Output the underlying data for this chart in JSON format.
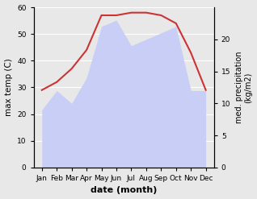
{
  "months": [
    "Jan",
    "Feb",
    "Mar",
    "Apr",
    "May",
    "Jun",
    "Jul",
    "Aug",
    "Sep",
    "Oct",
    "Nov",
    "Dec"
  ],
  "temperature": [
    29,
    32,
    37,
    44,
    57,
    57,
    58,
    58,
    57,
    54,
    43,
    29
  ],
  "precipitation": [
    9,
    12,
    10,
    14,
    22,
    23,
    19,
    20,
    21,
    22,
    12,
    12
  ],
  "temp_color": "#cc3333",
  "precip_fill_color": "#c8cef5",
  "temp_ylim": [
    0,
    60
  ],
  "precip_ylim": [
    0,
    25
  ],
  "precip_yticks": [
    0,
    5,
    10,
    15,
    20
  ],
  "temp_yticks": [
    0,
    10,
    20,
    30,
    40,
    50,
    60
  ],
  "xlabel": "date (month)",
  "ylabel_left": "max temp (C)",
  "ylabel_right": "med. precipitation\n(kg/m2)",
  "bg_color": "#e8e8e8"
}
